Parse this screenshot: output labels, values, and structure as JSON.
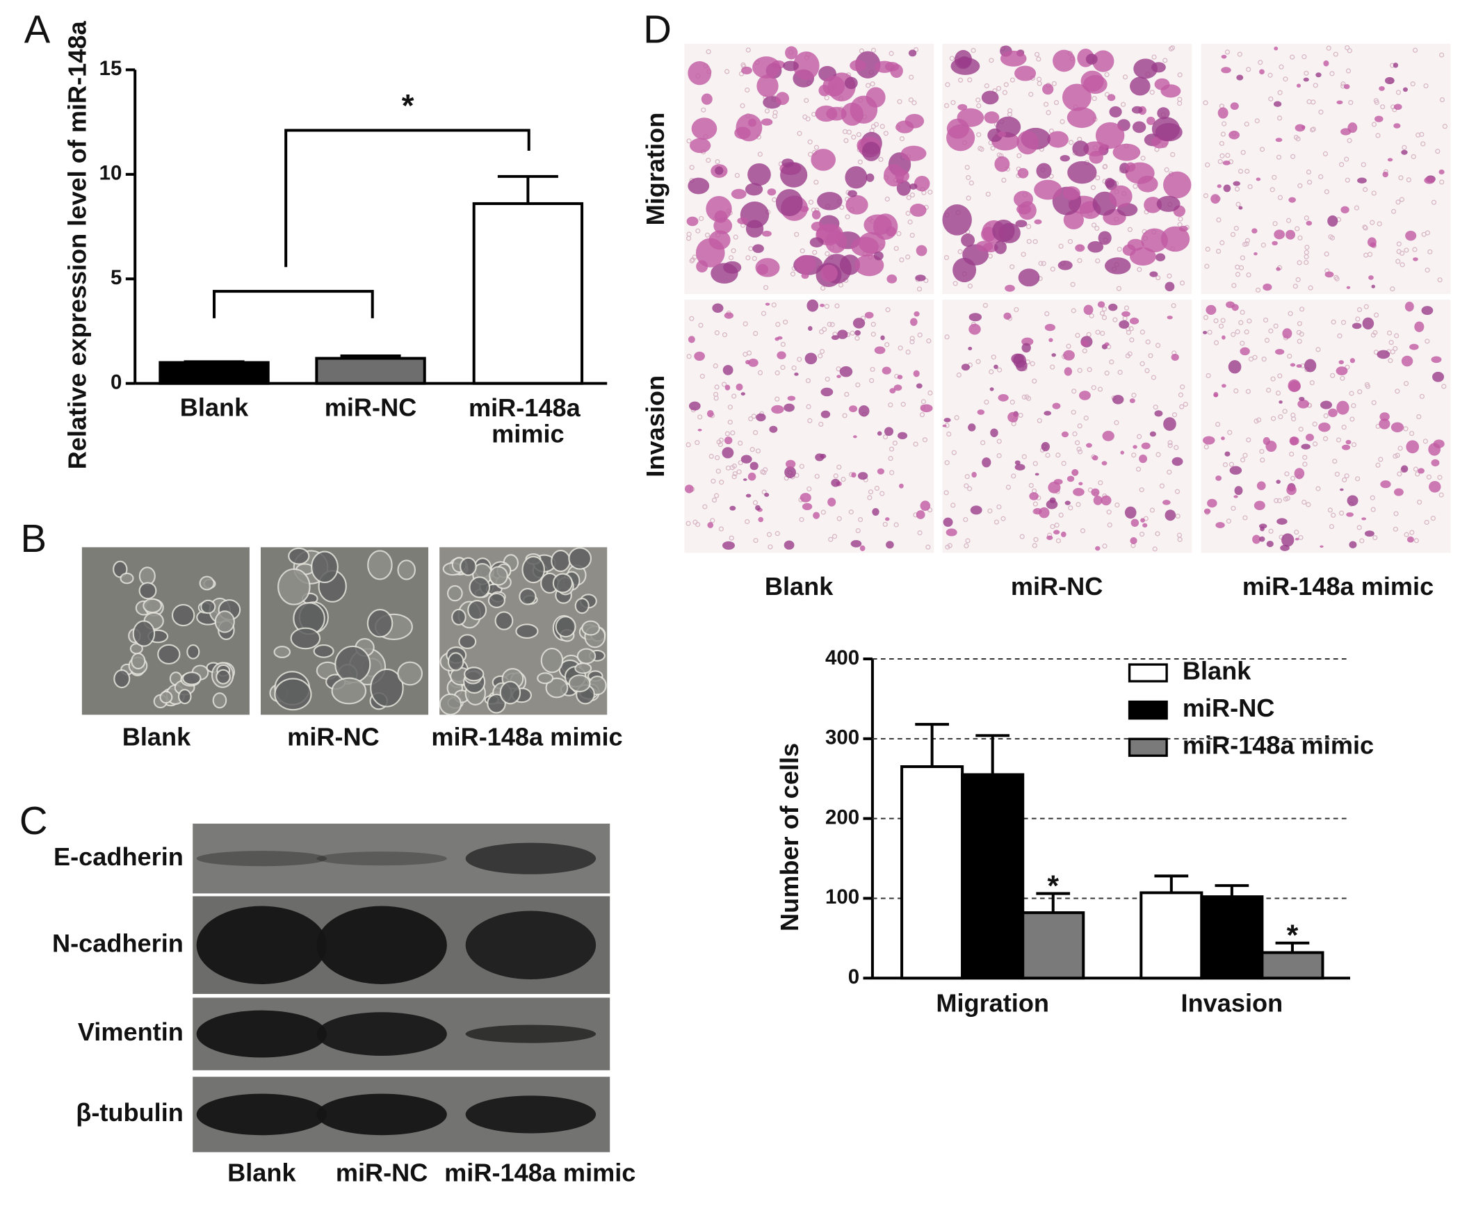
{
  "panel_labels": [
    "A",
    "B",
    "C",
    "D"
  ],
  "chart_data": [
    {
      "type": "bar",
      "ylabel": "Relative expression level of miR-148a",
      "categories": [
        "Blank",
        "miR-NC",
        "miR-148a mimic"
      ],
      "values": [
        1.0,
        1.2,
        8.6
      ],
      "errors": [
        0.04,
        0.12,
        1.3
      ],
      "colors": [
        "#000000",
        "#6e6e6e",
        "#ffffff"
      ],
      "ylim": [
        0,
        15
      ],
      "yticks": [
        0,
        5,
        10,
        15
      ],
      "annotation": "*"
    },
    {
      "type": "bar",
      "ylabel": "Number of cells",
      "categories": [
        "Migration",
        "Invasion"
      ],
      "series": [
        {
          "name": "Blank",
          "color": "#ffffff",
          "values": [
            265,
            107
          ],
          "errors": [
            53,
            21
          ]
        },
        {
          "name": "miR-NC",
          "color": "#000000",
          "values": [
            255,
            102
          ],
          "errors": [
            49,
            14
          ]
        },
        {
          "name": "miR-148a mimic",
          "color": "#7a7a7a",
          "values": [
            82,
            32
          ],
          "errors": [
            24,
            12
          ],
          "labels": [
            "*",
            "*"
          ]
        }
      ],
      "ylim": [
        0,
        400
      ],
      "yticks": [
        0,
        100,
        200,
        300,
        400
      ],
      "grid": true,
      "legend": "upper right"
    }
  ],
  "micrographs": {
    "labels": [
      "Blank",
      "miR-NC",
      "miR-148a mimic"
    ]
  },
  "western_blot": {
    "proteins": [
      "E-cadherin",
      "N-cadherin",
      "Vimentin",
      "β-tubulin"
    ],
    "lanes": [
      "Blank",
      "miR-NC",
      "miR-148a mimic"
    ]
  },
  "transwell": {
    "rows": [
      "Migration",
      "Invasion"
    ],
    "columns": [
      "Blank",
      "miR-NC",
      "miR-148a mimic"
    ]
  }
}
